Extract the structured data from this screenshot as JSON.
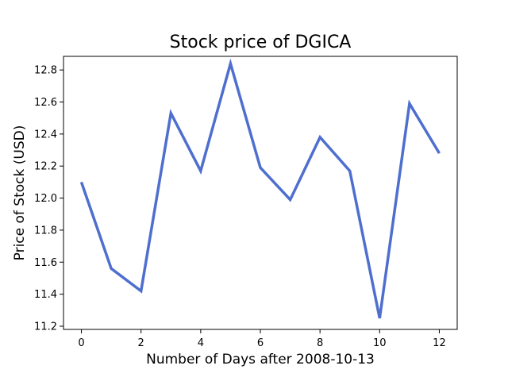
{
  "chart_data": {
    "type": "line",
    "title": "Stock price of DGICA",
    "xlabel": "Number of Days after 2008-10-13",
    "ylabel": "Price of Stock (USD)",
    "xlim": [
      -0.6,
      12.6
    ],
    "ylim": [
      11.18,
      12.885
    ],
    "x_ticks": [
      0,
      2,
      4,
      6,
      8,
      10,
      12
    ],
    "y_ticks": [
      11.2,
      11.4,
      11.6,
      11.8,
      12.0,
      12.2,
      12.4,
      12.6,
      12.8
    ],
    "grid": false,
    "line_color": "#4f6fcf",
    "series": [
      {
        "x": [
          0,
          1,
          2,
          3,
          4,
          5,
          6,
          7,
          8,
          9,
          10,
          11,
          12
        ],
        "values": [
          12.1,
          11.56,
          11.42,
          12.53,
          12.17,
          12.84,
          12.19,
          11.99,
          12.38,
          12.17,
          11.25,
          12.59,
          12.28
        ]
      }
    ]
  }
}
